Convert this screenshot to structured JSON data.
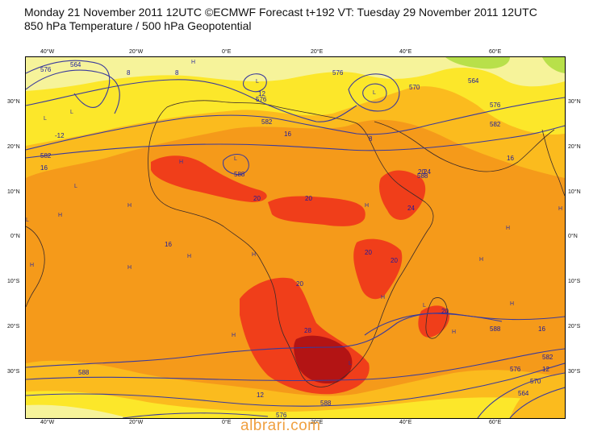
{
  "header": {
    "line1": "Monday 21 November 2011 12UTC ©ECMWF Forecast t+192 VT: Tuesday 29 November 2011 12UTC",
    "line2": "850 hPa Temperature / 500 hPa Geopotential"
  },
  "axes": {
    "lon_labels": [
      "40°W",
      "20°W",
      "0°E",
      "20°E",
      "40°E",
      "60°E"
    ],
    "lat_labels": [
      "30°N",
      "20°N",
      "10°N",
      "0°N",
      "10°S",
      "20°S",
      "30°S"
    ]
  },
  "contour_labels": {
    "geopotential": [
      "564",
      "576",
      "576",
      "582",
      "588",
      "576",
      "582",
      "582",
      "588",
      "576",
      "570",
      "564",
      "576",
      "582",
      "588",
      "588",
      "576",
      "564",
      "570",
      "588"
    ],
    "temperature": [
      "8",
      "8",
      "-12",
      "16",
      "12",
      "16",
      "16",
      "20",
      "20",
      "20",
      "16",
      "20",
      "20",
      "28",
      "24",
      "20",
      "20",
      "24",
      "16",
      "12",
      "12",
      "8"
    ]
  },
  "pressure_marks": {
    "high": "H",
    "low": "L"
  },
  "palette": {
    "t_lt0": "#b8e04a",
    "t_0_8": "#f6f39a",
    "t_8_12": "#fce72a",
    "t_12_16": "#fbbb1e",
    "t_16_20": "#f58a16",
    "t_20_24": "#f03e1a",
    "t_24_28": "#e31b1b",
    "t_gt28": "#b31414",
    "contours": "#3a3a9c",
    "coastline": "#3a2a2a"
  },
  "watermark": "albrari.com"
}
